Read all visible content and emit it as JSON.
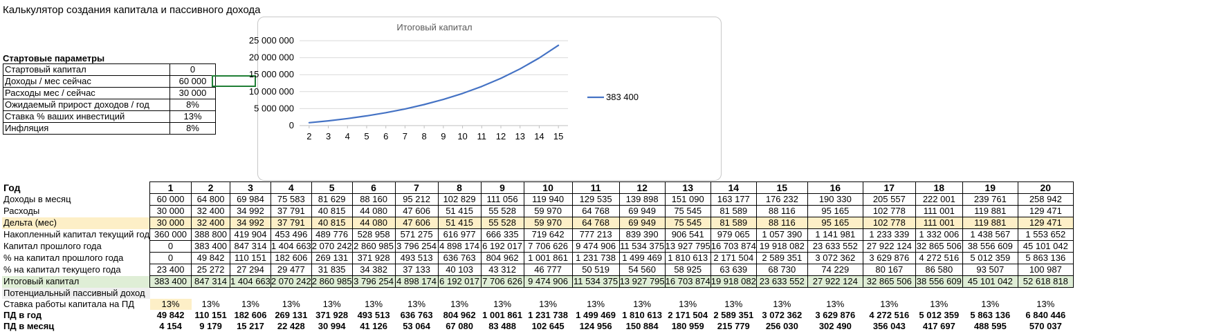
{
  "title": "Калькулятор создания капитала и пассивного дохода",
  "params": {
    "title": "Стартовые параметры",
    "rows": [
      {
        "label": "Стартовый капитал",
        "value": "0"
      },
      {
        "label": "Доходы / мес сейчас",
        "value": "60 000"
      },
      {
        "label": "Расходы мес / сейчас",
        "value": "30 000"
      },
      {
        "label": "Ожидаемый прирост доходов / год",
        "value": "8%"
      },
      {
        "label": "Ставка % ваших инвестиций",
        "value": "13%"
      },
      {
        "label": "Инфляция",
        "value": "8%"
      }
    ]
  },
  "chart_data": {
    "type": "line",
    "title": "Итоговый капитал",
    "categories": [
      "2",
      "3",
      "4",
      "5",
      "6",
      "7",
      "8",
      "9",
      "10",
      "11",
      "12",
      "13",
      "14",
      "15"
    ],
    "series": [
      {
        "name": "383 400",
        "color": "#4472c4",
        "values": [
          847314,
          1404663,
          2070242,
          2860985,
          3796254,
          4898174,
          6192017,
          7706626,
          9474906,
          11534375,
          13927795,
          16703874,
          19918082,
          23633552
        ]
      }
    ],
    "yticks": [
      "0",
      "5 000 000",
      "10 000 000",
      "15 000 000",
      "20 000 000",
      "25 000 000"
    ],
    "ylim": [
      0,
      25000000
    ],
    "legend": "right"
  },
  "table": {
    "years_label": "Год",
    "years": [
      "1",
      "2",
      "3",
      "4",
      "5",
      "6",
      "7",
      "8",
      "9",
      "10",
      "11",
      "12",
      "13",
      "14",
      "15",
      "16",
      "17",
      "18",
      "19",
      "20"
    ],
    "rows": [
      {
        "label": "Доходы в месяц",
        "values": [
          "60 000",
          "64 800",
          "69 984",
          "75 583",
          "81 629",
          "88 160",
          "95 212",
          "102 829",
          "111 056",
          "119 940",
          "129 535",
          "139 898",
          "151 090",
          "163 177",
          "176 232",
          "190 330",
          "205 557",
          "222 001",
          "239 761",
          "258 942"
        ]
      },
      {
        "label": "Расходы",
        "values": [
          "30 000",
          "32 400",
          "34 992",
          "37 791",
          "40 815",
          "44 080",
          "47 606",
          "51 415",
          "55 528",
          "59 970",
          "64 768",
          "69 949",
          "75 545",
          "81 589",
          "88 116",
          "95 165",
          "102 778",
          "111 001",
          "119 881",
          "129 471"
        ]
      },
      {
        "label": "Дельта (мес)",
        "values": [
          "30 000",
          "32 400",
          "34 992",
          "37 791",
          "40 815",
          "44 080",
          "47 606",
          "51 415",
          "55 528",
          "59 970",
          "64 768",
          "69 949",
          "75 545",
          "81 589",
          "88 116",
          "95 165",
          "102 778",
          "111 001",
          "119 881",
          "129 471"
        ]
      },
      {
        "label": "Накопленный капитал текущий год",
        "values": [
          "360 000",
          "388 800",
          "419 904",
          "453 496",
          "489 776",
          "528 958",
          "571 275",
          "616 977",
          "666 335",
          "719 642",
          "777 213",
          "839 390",
          "906 541",
          "979 065",
          "1 057 390",
          "1 141 981",
          "1 233 339",
          "1 332 006",
          "1 438 567",
          "1 553 652"
        ]
      },
      {
        "label": "Капитал прошлого года",
        "values": [
          "0",
          "383 400",
          "847 314",
          "1 404 663",
          "2 070 242",
          "2 860 985",
          "3 796 254",
          "4 898 174",
          "6 192 017",
          "7 706 626",
          "9 474 906",
          "11 534 375",
          "13 927 795",
          "16 703 874",
          "19 918 082",
          "23 633 552",
          "27 922 124",
          "32 865 506",
          "38 556 609",
          "45 101 042"
        ]
      },
      {
        "label": "% на капитал прошлого года",
        "values": [
          "0",
          "49 842",
          "110 151",
          "182 606",
          "269 131",
          "371 928",
          "493 513",
          "636 763",
          "804 962",
          "1 001 861",
          "1 231 738",
          "1 499 469",
          "1 810 613",
          "2 171 504",
          "2 589 351",
          "3 072 362",
          "3 629 876",
          "4 272 516",
          "5 012 359",
          "5 863 136"
        ]
      },
      {
        "label": "% на капитал текущего года",
        "values": [
          "23 400",
          "25 272",
          "27 294",
          "29 477",
          "31 835",
          "34 382",
          "37 133",
          "40 103",
          "43 312",
          "46 777",
          "50 519",
          "54 560",
          "58 925",
          "63 639",
          "68 730",
          "74 229",
          "80 167",
          "86 580",
          "93 507",
          "100 987"
        ]
      },
      {
        "label": "Итоговый капитал",
        "values": [
          "383 400",
          "847 314",
          "1 404 663",
          "2 070 242",
          "2 860 985",
          "3 796 254",
          "4 898 174",
          "6 192 017",
          "7 706 626",
          "9 474 906",
          "11 534 375",
          "13 927 795",
          "16 703 874",
          "19 918 082",
          "23 633 552",
          "27 922 124",
          "32 865 506",
          "38 556 609",
          "45 101 042",
          "52 618 818"
        ]
      }
    ],
    "passive_label": "Потенциальный пассивный доход",
    "rate": {
      "label": "Ставка работы капитала на ПД",
      "values": [
        "13%",
        "13%",
        "13%",
        "13%",
        "13%",
        "13%",
        "13%",
        "13%",
        "13%",
        "13%",
        "13%",
        "13%",
        "13%",
        "13%",
        "13%",
        "13%",
        "13%",
        "13%",
        "13%",
        "13%"
      ]
    },
    "pd_year": {
      "label": "ПД в год",
      "values": [
        "49 842",
        "110 151",
        "182 606",
        "269 131",
        "371 928",
        "493 513",
        "636 763",
        "804 962",
        "1 001 861",
        "1 231 738",
        "1 499 469",
        "1 810 613",
        "2 171 504",
        "2 589 351",
        "3 072 362",
        "3 629 876",
        "4 272 516",
        "5 012 359",
        "5 863 136",
        "6 840 446"
      ]
    },
    "pd_month": {
      "label": "ПД в месяц",
      "values": [
        "4 154",
        "9 179",
        "15 217",
        "22 428",
        "30 994",
        "41 126",
        "53 064",
        "67 080",
        "83 488",
        "102 645",
        "124 956",
        "150 884",
        "180 959",
        "215 779",
        "256 030",
        "302 490",
        "356 043",
        "417 697",
        "488 595",
        "570 037"
      ]
    }
  }
}
